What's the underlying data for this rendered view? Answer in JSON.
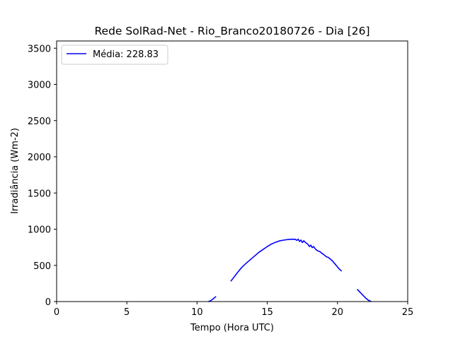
{
  "chart_data": {
    "type": "line",
    "title": "Rede SolRad-Net - Rio_Branco20180726 - Dia [26]",
    "xlabel": "Tempo (Hora UTC)",
    "ylabel": "Irradiância (Wm-2)",
    "xlim": [
      0,
      25
    ],
    "ylim": [
      0,
      3600
    ],
    "xticks": [
      0,
      5,
      10,
      15,
      20,
      25
    ],
    "yticks": [
      0,
      500,
      1000,
      1500,
      2000,
      2500,
      3000,
      3500
    ],
    "grid": false,
    "legend_position": "top-left",
    "series": [
      {
        "name": "Média: 228.83",
        "color": "#0000ff",
        "segments": [
          [
            [
              10.8,
              0
            ],
            [
              10.95,
              10
            ],
            [
              11.1,
              30
            ],
            [
              11.25,
              55
            ],
            [
              11.35,
              70
            ]
          ],
          [
            [
              12.4,
              280
            ],
            [
              12.6,
              330
            ],
            [
              12.8,
              380
            ],
            [
              13.0,
              430
            ],
            [
              13.2,
              475
            ],
            [
              13.5,
              530
            ],
            [
              13.8,
              580
            ],
            [
              14.1,
              630
            ],
            [
              14.4,
              680
            ],
            [
              14.7,
              720
            ],
            [
              15.0,
              760
            ],
            [
              15.3,
              795
            ],
            [
              15.6,
              820
            ],
            [
              15.9,
              840
            ],
            [
              16.2,
              850
            ],
            [
              16.5,
              858
            ],
            [
              16.8,
              862
            ],
            [
              17.0,
              860
            ],
            [
              17.1,
              845
            ],
            [
              17.2,
              862
            ],
            [
              17.3,
              830
            ],
            [
              17.4,
              850
            ],
            [
              17.5,
              815
            ],
            [
              17.6,
              840
            ],
            [
              17.7,
              820
            ],
            [
              17.9,
              790
            ],
            [
              18.0,
              760
            ],
            [
              18.1,
              780
            ],
            [
              18.2,
              745
            ],
            [
              18.3,
              760
            ],
            [
              18.45,
              720
            ],
            [
              18.6,
              700
            ],
            [
              18.75,
              690
            ],
            [
              18.9,
              665
            ],
            [
              19.05,
              645
            ],
            [
              19.2,
              620
            ],
            [
              19.35,
              610
            ],
            [
              19.5,
              585
            ],
            [
              19.65,
              560
            ],
            [
              19.8,
              525
            ],
            [
              19.95,
              490
            ],
            [
              20.1,
              455
            ],
            [
              20.3,
              420
            ]
          ],
          [
            [
              21.4,
              170
            ],
            [
              21.6,
              130
            ],
            [
              21.8,
              90
            ],
            [
              22.0,
              50
            ],
            [
              22.2,
              18
            ],
            [
              22.4,
              0
            ]
          ]
        ]
      }
    ]
  }
}
